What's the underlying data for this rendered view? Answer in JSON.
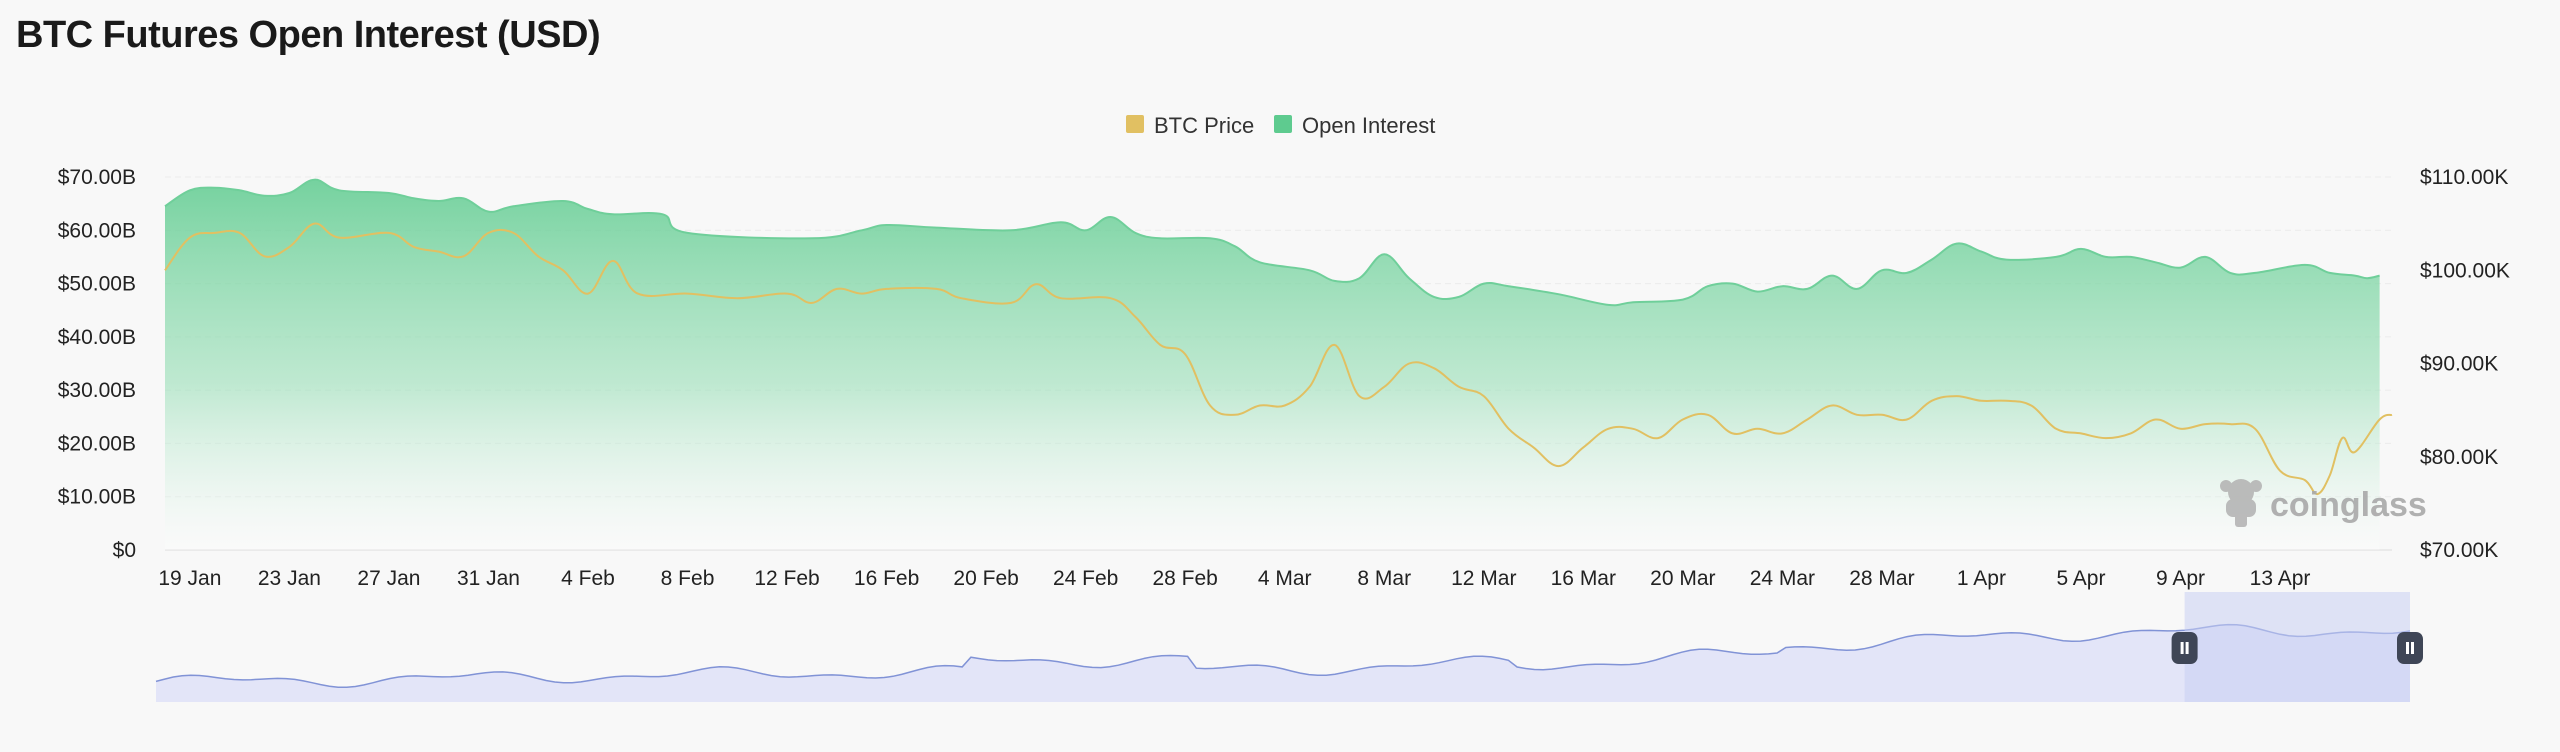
{
  "page": {
    "title": "BTC Futures Open Interest (USD)"
  },
  "colors": {
    "btc_price": "#e1c062",
    "open_interest": "#5ecb8f",
    "navigator_fill": "#e3e5f8",
    "navigator_line": "#8193d6",
    "grid": "#ebebeb"
  },
  "watermark": {
    "text": "coinglass",
    "icon": "coinglass-logo-icon"
  },
  "navigator": {
    "handle_icon": "pause-handle-icon",
    "selected_range": [
      0.9,
      1.0
    ]
  },
  "chart_data": {
    "type": "area",
    "legend_position": "top-center",
    "grid": true,
    "x_ticks": [
      "19 Jan",
      "23 Jan",
      "27 Jan",
      "31 Jan",
      "4 Feb",
      "8 Feb",
      "12 Feb",
      "16 Feb",
      "20 Feb",
      "24 Feb",
      "28 Feb",
      "4 Mar",
      "8 Mar",
      "12 Mar",
      "16 Mar",
      "20 Mar",
      "24 Mar",
      "28 Mar",
      "1 Apr",
      "5 Apr",
      "9 Apr",
      "13 Apr"
    ],
    "y_left": {
      "ticks": [
        "$0",
        "$10.00B",
        "$20.00B",
        "$30.00B",
        "$40.00B",
        "$50.00B",
        "$60.00B",
        "$70.00B"
      ],
      "range": [
        0,
        70
      ]
    },
    "y_right": {
      "ticks": [
        "$70.00K",
        "$80.00K",
        "$90.00K",
        "$100.00K",
        "$110.00K"
      ],
      "range": [
        70,
        110
      ]
    },
    "x_range": [
      -1,
      88.5
    ],
    "series": [
      {
        "name": "Open Interest",
        "type": "area",
        "unit": "B",
        "points": [
          [
            -1,
            64.5
          ],
          [
            0,
            67.5
          ],
          [
            1,
            68
          ],
          [
            2,
            67.5
          ],
          [
            3,
            66.5
          ],
          [
            4,
            67
          ],
          [
            5,
            69.5
          ],
          [
            6,
            67.5
          ],
          [
            8,
            67
          ],
          [
            9,
            66
          ],
          [
            10,
            65.5
          ],
          [
            11,
            66
          ],
          [
            12,
            63.5
          ],
          [
            13,
            64.5
          ],
          [
            15,
            65.5
          ],
          [
            16,
            64
          ],
          [
            17,
            63
          ],
          [
            19,
            63
          ],
          [
            20,
            59.5
          ],
          [
            25,
            58.5
          ],
          [
            27,
            60
          ],
          [
            28,
            61
          ],
          [
            30,
            60.5
          ],
          [
            33,
            60
          ],
          [
            35,
            61.5
          ],
          [
            36,
            60
          ],
          [
            37,
            62.5
          ],
          [
            38,
            59.5
          ],
          [
            39,
            58.5
          ],
          [
            41,
            58.5
          ],
          [
            42,
            57
          ],
          [
            43,
            54
          ],
          [
            45,
            52.5
          ],
          [
            46,
            50.5
          ],
          [
            47,
            51
          ],
          [
            48,
            55.5
          ],
          [
            49,
            51
          ],
          [
            50,
            47.5
          ],
          [
            51,
            47.5
          ],
          [
            52,
            50
          ],
          [
            53,
            49.5
          ],
          [
            55,
            48
          ],
          [
            57,
            46
          ],
          [
            58,
            46.5
          ],
          [
            60,
            47
          ],
          [
            61,
            49.5
          ],
          [
            62,
            50
          ],
          [
            63,
            48.5
          ],
          [
            64,
            49.5
          ],
          [
            65,
            49
          ],
          [
            66,
            51.5
          ],
          [
            67,
            49
          ],
          [
            68,
            52.5
          ],
          [
            69,
            52
          ],
          [
            70,
            54.5
          ],
          [
            71,
            57.5
          ],
          [
            72,
            56
          ],
          [
            73,
            54.5
          ],
          [
            75,
            55
          ],
          [
            76,
            56.5
          ],
          [
            77,
            55
          ],
          [
            78,
            55
          ],
          [
            79,
            54
          ],
          [
            80,
            53
          ],
          [
            81,
            55
          ],
          [
            82,
            52
          ],
          [
            83,
            52
          ],
          [
            85,
            53.5
          ],
          [
            86,
            52
          ],
          [
            87,
            51.5
          ],
          [
            87.5,
            51
          ],
          [
            88,
            51.5
          ]
        ]
      },
      {
        "name": "BTC Price",
        "type": "line",
        "unit": "K",
        "points": [
          [
            -1,
            100
          ],
          [
            0,
            103.5
          ],
          [
            1,
            104
          ],
          [
            2,
            104
          ],
          [
            3,
            101.5
          ],
          [
            4,
            102.5
          ],
          [
            5,
            105
          ],
          [
            6,
            103.5
          ],
          [
            8,
            104
          ],
          [
            9,
            102.5
          ],
          [
            10,
            102
          ],
          [
            11,
            101.5
          ],
          [
            12,
            104
          ],
          [
            13,
            104
          ],
          [
            14,
            101.5
          ],
          [
            15,
            100
          ],
          [
            16,
            97.5
          ],
          [
            17,
            101
          ],
          [
            18,
            97.5
          ],
          [
            20,
            97.5
          ],
          [
            22,
            97
          ],
          [
            24,
            97.5
          ],
          [
            25,
            96.5
          ],
          [
            26,
            98
          ],
          [
            27,
            97.5
          ],
          [
            28,
            98
          ],
          [
            30,
            98
          ],
          [
            31,
            97
          ],
          [
            33,
            96.5
          ],
          [
            34,
            98.5
          ],
          [
            35,
            97
          ],
          [
            37,
            97
          ],
          [
            38,
            95
          ],
          [
            39,
            92
          ],
          [
            40,
            91
          ],
          [
            41,
            85.5
          ],
          [
            42,
            84.5
          ],
          [
            43,
            85.5
          ],
          [
            44,
            85.5
          ],
          [
            45,
            87.5
          ],
          [
            46,
            92
          ],
          [
            47,
            86.5
          ],
          [
            48,
            87.5
          ],
          [
            49,
            90
          ],
          [
            50,
            89.5
          ],
          [
            51,
            87.5
          ],
          [
            52,
            86.5
          ],
          [
            53,
            83
          ],
          [
            54,
            81
          ],
          [
            55,
            79
          ],
          [
            56,
            81
          ],
          [
            57,
            83
          ],
          [
            58,
            83
          ],
          [
            59,
            82
          ],
          [
            60,
            84
          ],
          [
            61,
            84.5
          ],
          [
            62,
            82.5
          ],
          [
            63,
            83
          ],
          [
            64,
            82.5
          ],
          [
            65,
            84
          ],
          [
            66,
            85.5
          ],
          [
            67,
            84.5
          ],
          [
            68,
            84.5
          ],
          [
            69,
            84
          ],
          [
            70,
            86
          ],
          [
            71,
            86.5
          ],
          [
            72,
            86
          ],
          [
            73,
            86
          ],
          [
            74,
            85.5
          ],
          [
            75,
            83
          ],
          [
            76,
            82.5
          ],
          [
            77,
            82
          ],
          [
            78,
            82.5
          ],
          [
            79,
            84
          ],
          [
            80,
            83
          ],
          [
            81,
            83.5
          ],
          [
            82,
            83.5
          ],
          [
            83,
            83
          ],
          [
            84,
            78.5
          ],
          [
            85,
            77.5
          ],
          [
            85.5,
            76
          ],
          [
            86,
            78
          ],
          [
            86.5,
            82
          ],
          [
            87,
            80.5
          ],
          [
            88,
            84
          ],
          [
            88.5,
            84.5
          ]
        ]
      }
    ]
  }
}
